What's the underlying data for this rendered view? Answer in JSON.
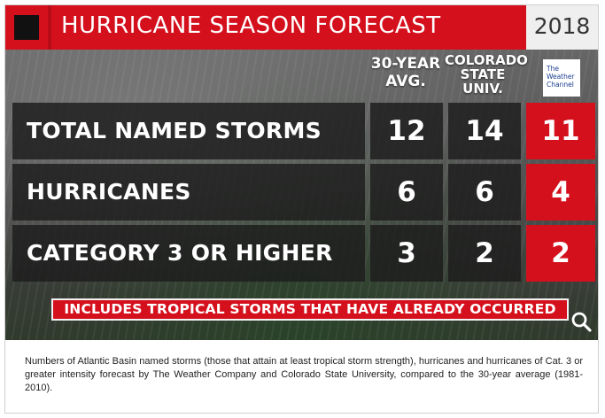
{
  "header": {
    "title": "HURRICANE SEASON FORECAST",
    "year": "2018"
  },
  "columns": {
    "avg_30yr": [
      "30-YEAR",
      "AVG."
    ],
    "csu": [
      "COLORADO",
      "STATE",
      "UNIV."
    ],
    "twc_logo": [
      "The",
      "Weather",
      "Channel"
    ]
  },
  "rows": [
    {
      "label": "TOTAL NAMED STORMS",
      "avg_30yr": "12",
      "csu": "14",
      "twc": "11"
    },
    {
      "label": "HURRICANES",
      "avg_30yr": "6",
      "csu": "6",
      "twc": "4"
    },
    {
      "label": "CATEGORY 3 OR HIGHER",
      "avg_30yr": "3",
      "csu": "2",
      "twc": "2"
    }
  ],
  "note": "INCLUDES TROPICAL STORMS THAT HAVE ALREADY OCCURRED",
  "caption": "Numbers of Atlantic Basin named storms (those that attain at least tropical storm strength), hurricanes and hurricanes of Cat. 3 or greater intensity forecast by The Weather Company and Colorado State University, compared to the 30-year average (1981-2010).",
  "icons": {
    "zoom": "magnify-icon"
  },
  "colors": {
    "accent_red": "#d5101d",
    "dark_cell": "#1c1c1c",
    "year_bg": "#efefef"
  }
}
